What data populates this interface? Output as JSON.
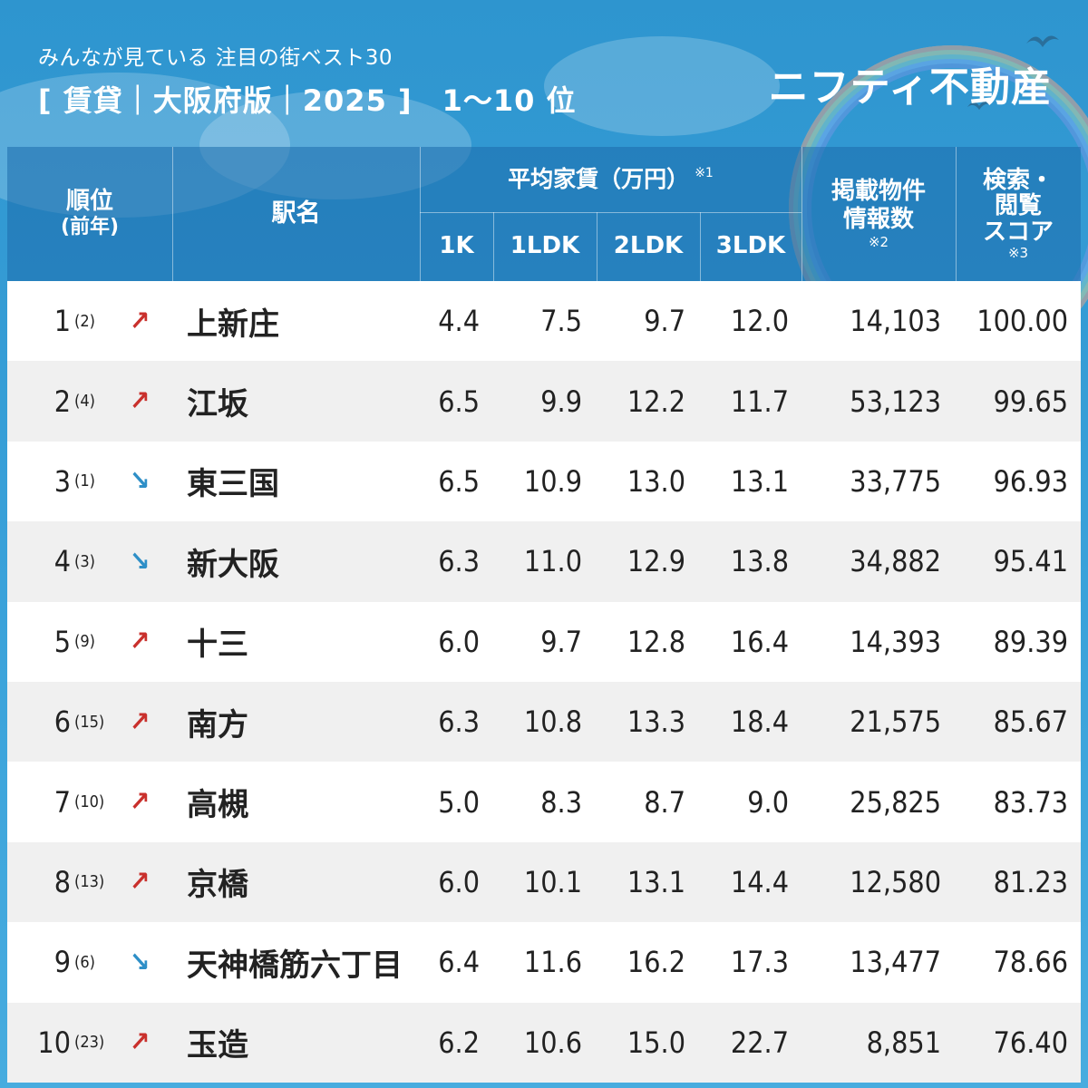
{
  "header": {
    "subtitle": "みんなが見ている 注目の街ベスト30",
    "title": "[ 賃貸｜大阪府版｜2025 ]　1〜10 位",
    "logo": "ニフティ不動産"
  },
  "table": {
    "columns": {
      "rank": "順位",
      "rank_prev": "(前年)",
      "station": "駅名",
      "rent_group": "平均家賃（万円）",
      "rent_note": "※1",
      "c_1k": "1K",
      "c_1ldk": "1LDK",
      "c_2ldk": "2LDK",
      "c_3ldk": "3LDK",
      "listings_1": "掲載物件",
      "listings_2": "情報数",
      "listings_note": "※2",
      "score_1": "検索・",
      "score_2": "閲覧",
      "score_3": "スコア",
      "score_note": "※3"
    },
    "rows": [
      {
        "rank": "1",
        "prev": "(2)",
        "trend": "up",
        "arrow": "↗",
        "station": "上新庄",
        "k1": "4.4",
        "ldk1": "7.5",
        "ldk2": "9.7",
        "ldk3": "12.0",
        "listings": "14,103",
        "score": "100.00"
      },
      {
        "rank": "2",
        "prev": "(4)",
        "trend": "up",
        "arrow": "↗",
        "station": "江坂",
        "k1": "6.5",
        "ldk1": "9.9",
        "ldk2": "12.2",
        "ldk3": "11.7",
        "listings": "53,123",
        "score": "99.65"
      },
      {
        "rank": "3",
        "prev": "(1)",
        "trend": "down",
        "arrow": "↘",
        "station": "東三国",
        "k1": "6.5",
        "ldk1": "10.9",
        "ldk2": "13.0",
        "ldk3": "13.1",
        "listings": "33,775",
        "score": "96.93"
      },
      {
        "rank": "4",
        "prev": "(3)",
        "trend": "down",
        "arrow": "↘",
        "station": "新大阪",
        "k1": "6.3",
        "ldk1": "11.0",
        "ldk2": "12.9",
        "ldk3": "13.8",
        "listings": "34,882",
        "score": "95.41"
      },
      {
        "rank": "5",
        "prev": "(9)",
        "trend": "up",
        "arrow": "↗",
        "station": "十三",
        "k1": "6.0",
        "ldk1": "9.7",
        "ldk2": "12.8",
        "ldk3": "16.4",
        "listings": "14,393",
        "score": "89.39"
      },
      {
        "rank": "6",
        "prev": "(15)",
        "trend": "up",
        "arrow": "↗",
        "station": "南方",
        "k1": "6.3",
        "ldk1": "10.8",
        "ldk2": "13.3",
        "ldk3": "18.4",
        "listings": "21,575",
        "score": "85.67"
      },
      {
        "rank": "7",
        "prev": "(10)",
        "trend": "up",
        "arrow": "↗",
        "station": "高槻",
        "k1": "5.0",
        "ldk1": "8.3",
        "ldk2": "8.7",
        "ldk3": "9.0",
        "listings": "25,825",
        "score": "83.73"
      },
      {
        "rank": "8",
        "prev": "(13)",
        "trend": "up",
        "arrow": "↗",
        "station": "京橋",
        "k1": "6.0",
        "ldk1": "10.1",
        "ldk2": "13.1",
        "ldk3": "14.4",
        "listings": "12,580",
        "score": "81.23"
      },
      {
        "rank": "9",
        "prev": "(6)",
        "trend": "down",
        "arrow": "↘",
        "station": "天神橋筋六丁目",
        "k1": "6.4",
        "ldk1": "11.6",
        "ldk2": "16.2",
        "ldk3": "17.3",
        "listings": "13,477",
        "score": "78.66"
      },
      {
        "rank": "10",
        "prev": "(23)",
        "trend": "up",
        "arrow": "↗",
        "station": "玉造",
        "k1": "6.2",
        "ldk1": "10.6",
        "ldk2": "15.0",
        "ldk3": "22.7",
        "listings": "8,851",
        "score": "76.40"
      }
    ]
  },
  "colors": {
    "background": "#3aa2da",
    "header_band": "#1c6cac",
    "up_arrow": "#c9302c",
    "down_arrow": "#2e8fc7"
  }
}
